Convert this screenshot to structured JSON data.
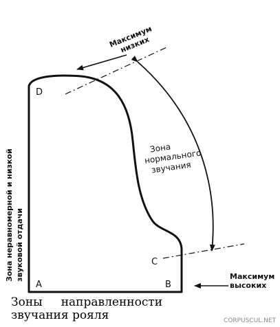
{
  "corners": {
    "a": "A",
    "b": "B",
    "c": "C",
    "d": "D"
  },
  "annotations": {
    "max_low_line1": "Максимум",
    "max_low_line2": "низких",
    "max_high_line1": "Максимум",
    "max_high_line2": "высоких",
    "normal_zone_line1": "Зона",
    "normal_zone_line2": "нормального",
    "normal_zone_line3": "звучания",
    "side_line1": "Зона неравномерной и низкой",
    "side_line2": "звуковой отдачи"
  },
  "caption": {
    "line1": "Зоны     направленности",
    "line2": "звучания рояля"
  },
  "watermark": "CORPUSCUL.NET",
  "colors": {
    "ink": "#111111",
    "watermark": "#8a8a8a"
  },
  "icons": {
    "pointer_arrow": "arrow-left-icon",
    "range_arrow": "double-arrow-icon"
  }
}
